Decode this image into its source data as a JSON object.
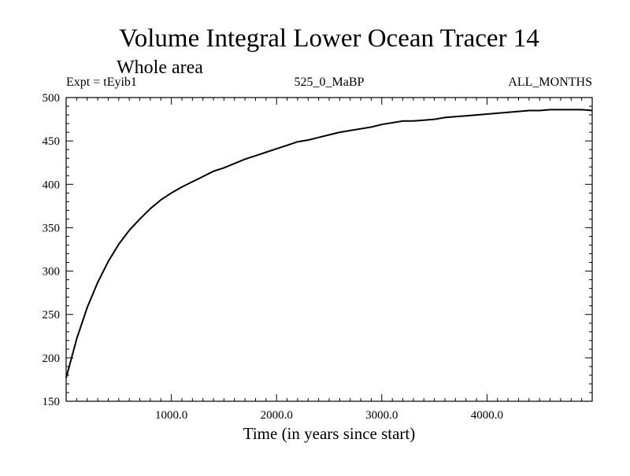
{
  "chart_data": {
    "type": "line",
    "title": "Volume Integral Lower Ocean Tracer 14",
    "subtitle": "Whole area",
    "experiment": "Expt = tEyib1",
    "period": "525_0_MaBP",
    "months": "ALL_MONTHS",
    "xlabel": "Time (in years since start)",
    "ylabel": "",
    "xlim": [
      0,
      5000
    ],
    "ylim": [
      150,
      500
    ],
    "x_ticks": [
      {
        "value": 1000,
        "label": "1000.0"
      },
      {
        "value": 2000,
        "label": "2000.0"
      },
      {
        "value": 3000,
        "label": "3000.0"
      },
      {
        "value": 4000,
        "label": "4000.0"
      }
    ],
    "y_ticks": [
      {
        "value": 150,
        "label": "150"
      },
      {
        "value": 200,
        "label": "200"
      },
      {
        "value": 250,
        "label": "250"
      },
      {
        "value": 300,
        "label": "300"
      },
      {
        "value": 350,
        "label": "350"
      },
      {
        "value": 400,
        "label": "400"
      },
      {
        "value": 450,
        "label": "450"
      },
      {
        "value": 500,
        "label": "500"
      }
    ],
    "grid": false,
    "series": [
      {
        "name": "Tracer 14",
        "color": "#000000",
        "x": [
          0,
          100,
          200,
          300,
          400,
          500,
          600,
          700,
          800,
          900,
          1000,
          1100,
          1200,
          1300,
          1400,
          1500,
          1600,
          1700,
          1800,
          1900,
          2000,
          2100,
          2200,
          2300,
          2400,
          2500,
          2600,
          2700,
          2800,
          2900,
          3000,
          3100,
          3200,
          3300,
          3400,
          3500,
          3600,
          3700,
          3800,
          3900,
          4000,
          4100,
          4200,
          4300,
          4400,
          4500,
          4600,
          4700,
          4800,
          4900,
          5000
        ],
        "y": [
          177,
          222,
          258,
          287,
          311,
          331,
          347,
          360,
          372,
          382,
          390,
          397,
          403,
          409,
          415,
          419,
          424,
          429,
          433,
          437,
          441,
          445,
          449,
          451,
          454,
          457,
          460,
          462,
          464,
          466,
          469,
          471,
          473,
          473,
          474,
          475,
          477,
          478,
          479,
          480,
          481,
          482,
          483,
          484,
          485,
          485,
          486,
          486,
          486,
          486,
          485
        ]
      }
    ]
  }
}
